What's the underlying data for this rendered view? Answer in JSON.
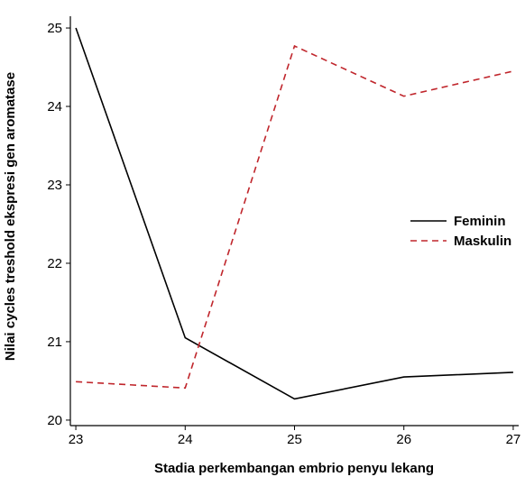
{
  "chart_data": {
    "type": "line",
    "title": "",
    "xlabel": "Stadia perkembangan embrio penyu lekang",
    "ylabel": "Nilai cycles treshold  ekspresi gen aromatase",
    "x": [
      23,
      24,
      25,
      26,
      27
    ],
    "xlim": [
      22.95,
      27.05
    ],
    "ylim": [
      19.93,
      25.15
    ],
    "xticks": [
      23,
      24,
      25,
      26,
      27
    ],
    "yticks": [
      20,
      21,
      22,
      23,
      24,
      25
    ],
    "grid": false,
    "legend_position": "right",
    "series": [
      {
        "name": "Feminin",
        "values": [
          25.0,
          21.05,
          20.27,
          20.55,
          20.61
        ],
        "color": "#000000",
        "dash": "solid"
      },
      {
        "name": "Maskulin",
        "values": [
          20.49,
          20.41,
          24.77,
          24.13,
          24.45
        ],
        "color": "#c0262c",
        "dash": "dashed"
      }
    ]
  }
}
